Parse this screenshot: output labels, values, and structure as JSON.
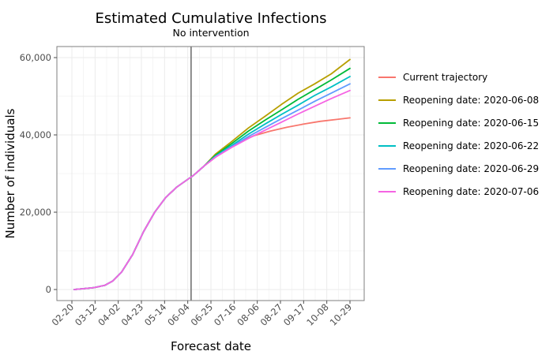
{
  "chart_data": {
    "type": "line",
    "title": "Estimated Cumulative Infections",
    "subtitle": "No intervention",
    "xlabel": "Forecast date",
    "ylabel": "Number of individuals",
    "x_tick_labels": [
      "02-20",
      "03-12",
      "04-02",
      "04-23",
      "05-14",
      "06-04",
      "06-25",
      "07-16",
      "08-06",
      "08-27",
      "09-17",
      "10-08",
      "10-29"
    ],
    "x_range_days": [
      0,
      252
    ],
    "ylim": [
      0,
      62000
    ],
    "y_ticks": [
      0,
      20000,
      40000,
      60000
    ],
    "y_tick_labels": [
      "0",
      "20,000",
      "40,000",
      "60,000"
    ],
    "vline_day": 108,
    "grid": true,
    "legend_position": "right",
    "common_path": [
      [
        2,
        0
      ],
      [
        10,
        200
      ],
      [
        20,
        500
      ],
      [
        30,
        1100
      ],
      [
        37,
        2200
      ],
      [
        45,
        4500
      ],
      [
        55,
        9000
      ],
      [
        65,
        15000
      ],
      [
        75,
        20000
      ],
      [
        85,
        23800
      ],
      [
        95,
        26500
      ],
      [
        105,
        28500
      ],
      [
        110,
        29500
      ],
      [
        120,
        32000
      ]
    ],
    "series": [
      {
        "name": "Current trajectory",
        "color": "#F8766D",
        "values": [
          [
            130,
            34200
          ],
          [
            140,
            36200
          ],
          [
            150,
            38000
          ],
          [
            165,
            39800
          ],
          [
            180,
            41000
          ],
          [
            195,
            42000
          ],
          [
            210,
            42800
          ],
          [
            225,
            43500
          ],
          [
            240,
            44000
          ],
          [
            252,
            44400
          ]
        ]
      },
      {
        "name": "Reopening date: 2020-06-08",
        "color": "#B79F00",
        "values": [
          [
            130,
            35000
          ],
          [
            145,
            38300
          ],
          [
            160,
            41800
          ],
          [
            175,
            44800
          ],
          [
            190,
            47900
          ],
          [
            205,
            50800
          ],
          [
            220,
            53200
          ],
          [
            235,
            55800
          ],
          [
            252,
            59500
          ]
        ]
      },
      {
        "name": "Reopening date: 2020-06-15",
        "color": "#00BA38",
        "values": [
          [
            130,
            34700
          ],
          [
            145,
            37800
          ],
          [
            160,
            41000
          ],
          [
            175,
            43800
          ],
          [
            190,
            46500
          ],
          [
            205,
            49200
          ],
          [
            220,
            51700
          ],
          [
            235,
            54200
          ],
          [
            252,
            57200
          ]
        ]
      },
      {
        "name": "Reopening date: 2020-06-22",
        "color": "#00BFC4",
        "values": [
          [
            130,
            34500
          ],
          [
            145,
            37300
          ],
          [
            160,
            40200
          ],
          [
            175,
            42800
          ],
          [
            190,
            45300
          ],
          [
            205,
            47700
          ],
          [
            220,
            50200
          ],
          [
            235,
            52400
          ],
          [
            252,
            55100
          ]
        ]
      },
      {
        "name": "Reopening date: 2020-06-29",
        "color": "#619CFF",
        "values": [
          [
            130,
            34300
          ],
          [
            145,
            37000
          ],
          [
            160,
            39600
          ],
          [
            175,
            41900
          ],
          [
            190,
            44200
          ],
          [
            205,
            46400
          ],
          [
            220,
            48700
          ],
          [
            235,
            50800
          ],
          [
            252,
            53200
          ]
        ]
      },
      {
        "name": "Reopening date: 2020-07-06",
        "color": "#F564E3",
        "values": [
          [
            130,
            34200
          ],
          [
            145,
            36800
          ],
          [
            160,
            39100
          ],
          [
            175,
            41200
          ],
          [
            190,
            43300
          ],
          [
            205,
            45400
          ],
          [
            220,
            47400
          ],
          [
            235,
            49400
          ],
          [
            252,
            51500
          ]
        ]
      }
    ]
  },
  "colors": {
    "panel_border": "#7f7f7f",
    "grid": "#ebebeb",
    "vline": "#7f7f7f",
    "tick": "#4d4d4d"
  }
}
